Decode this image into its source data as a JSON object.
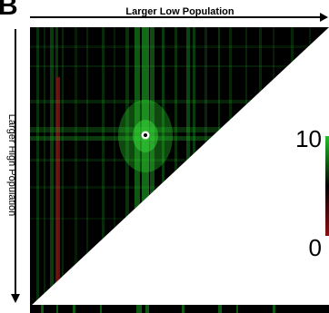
{
  "panel_letter": "B",
  "chart_data": {
    "type": "heatmap",
    "title": "",
    "x_axis_label": "Larger Low Population",
    "y_axis_label": "Larger High Population",
    "matrix_shape": "upper-left triangle",
    "colorbar": {
      "ticks": [
        "10",
        "0"
      ]
    },
    "marker": {
      "label": "",
      "shape": "white ring with black center"
    },
    "colors": {
      "background": "#000000",
      "high": "#22c02a",
      "low": "#8a1010"
    }
  }
}
